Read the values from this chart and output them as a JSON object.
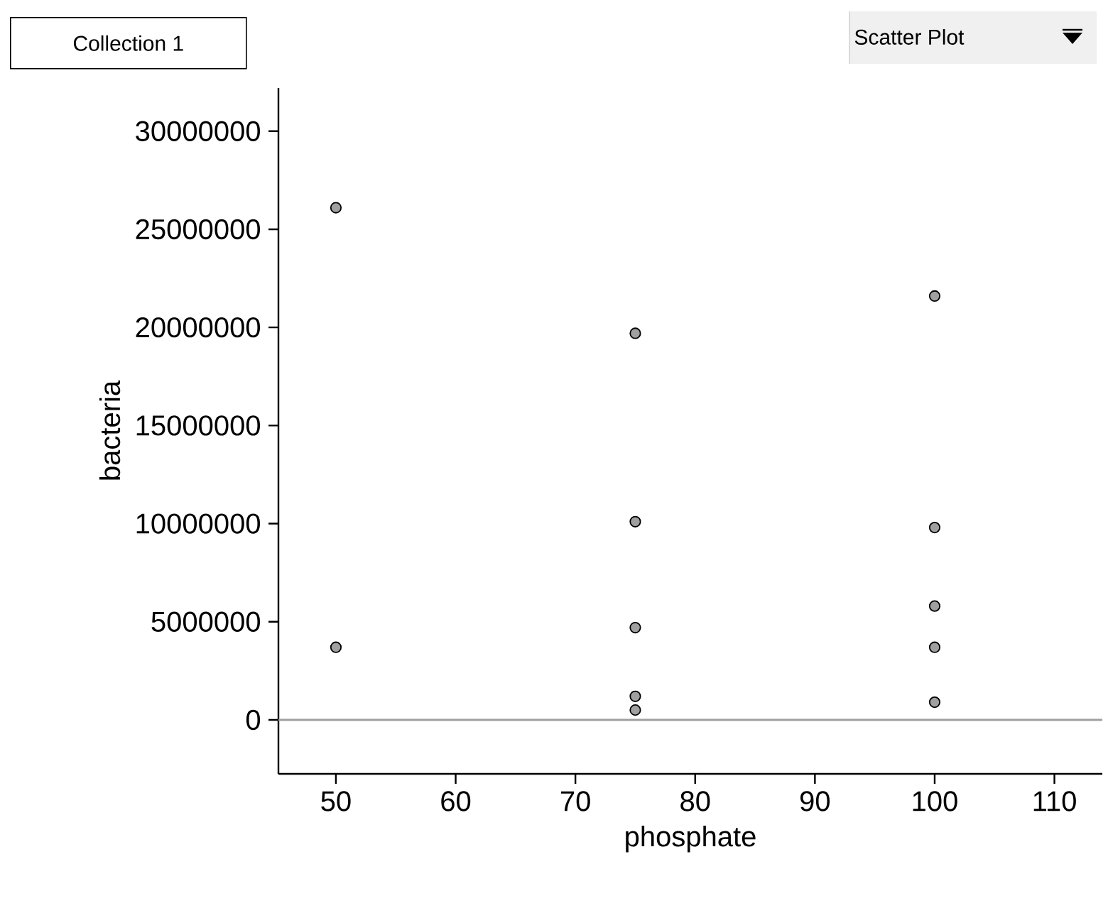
{
  "chart_data": {
    "type": "scatter",
    "title": "Collection 1",
    "xlabel": "phosphate",
    "ylabel": "bacteria",
    "annotations": [
      "Scatter Plot"
    ],
    "x": [
      50,
      50,
      75,
      75,
      75,
      75,
      75,
      100,
      100,
      100,
      100,
      100
    ],
    "values": [
      26100000,
      3700000,
      19700000,
      10100000,
      4700000,
      1200000,
      500000,
      21600000,
      9800000,
      5800000,
      3700000,
      900000
    ],
    "color": "#a0a0a0",
    "marker": "circle",
    "xlim": [
      45.2,
      114
    ],
    "xticks": [
      50,
      60,
      70,
      80,
      90,
      100,
      110
    ],
    "ylim": [
      -2750000,
      32200000
    ],
    "yticks": [
      0,
      5000000,
      10000000,
      15000000,
      20000000,
      25000000,
      30000000
    ],
    "ref_lines": [
      {
        "axis": "y",
        "value": 0,
        "color": "#a0a0a0"
      }
    ],
    "grid": false
  }
}
